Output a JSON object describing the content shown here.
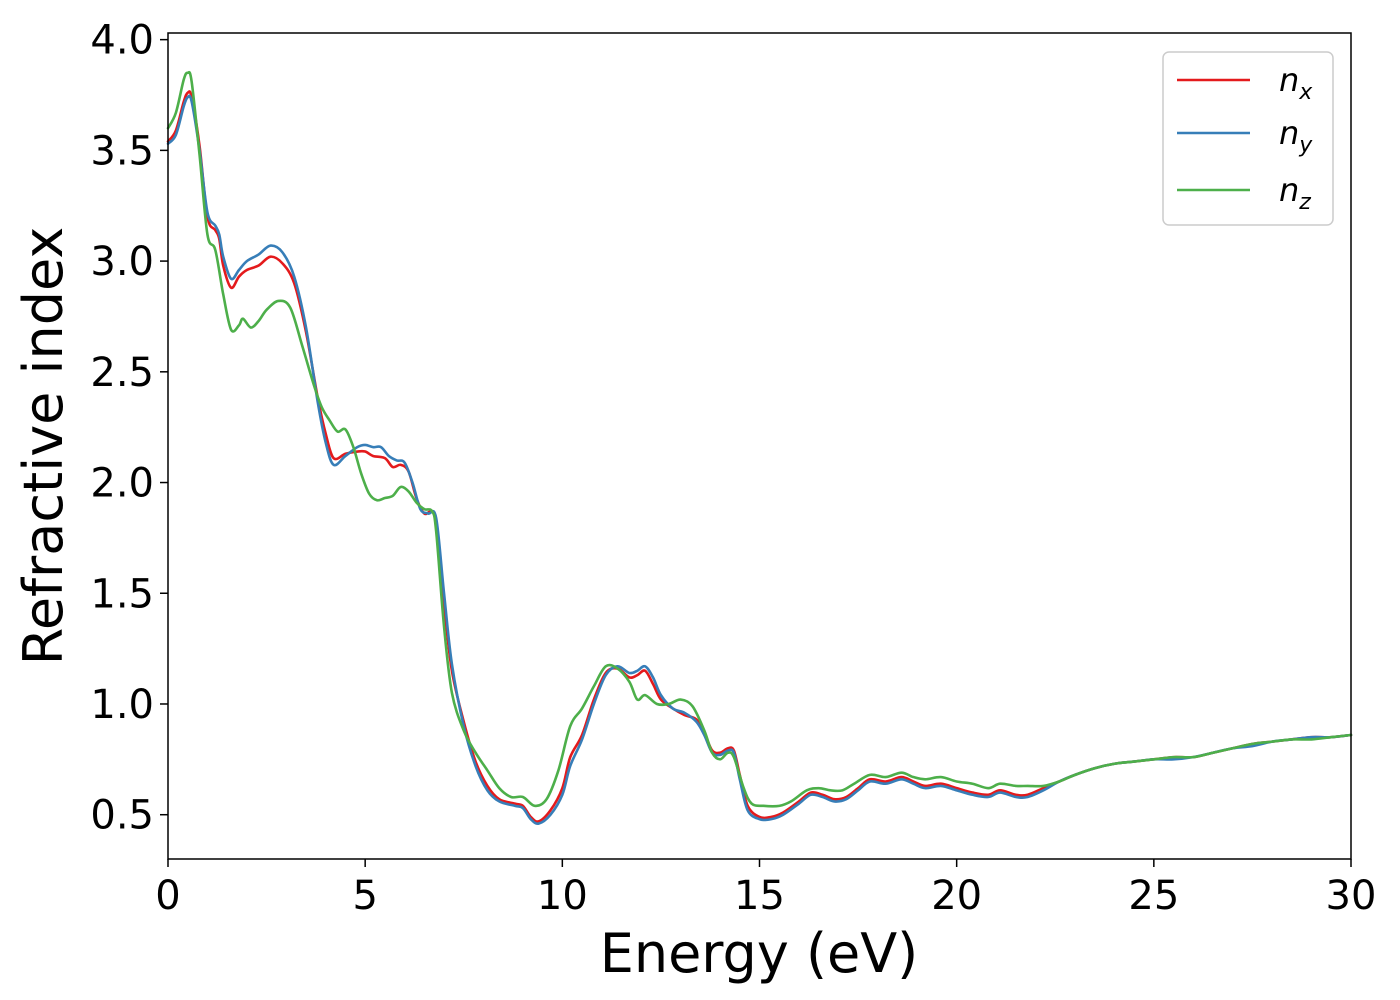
{
  "chart_data": {
    "type": "line",
    "xlabel": "Energy (eV)",
    "ylabel": "Refractive index",
    "xlim": [
      0,
      30
    ],
    "ylim": [
      0.3,
      4.03
    ],
    "xticks": [
      0,
      5,
      10,
      15,
      20,
      25,
      30
    ],
    "xtick_labels": [
      "0",
      "5",
      "10",
      "15",
      "20",
      "25",
      "30"
    ],
    "yticks": [
      0.5,
      1.0,
      1.5,
      2.0,
      2.5,
      3.0,
      3.5,
      4.0
    ],
    "ytick_labels": [
      "0.5",
      "1.0",
      "1.5",
      "2.0",
      "2.5",
      "3.0",
      "3.5",
      "4.0"
    ],
    "grid": false,
    "legend_position": "top-right",
    "series": [
      {
        "name": "n",
        "subscript": "x",
        "color": "#e41a1c",
        "points": [
          [
            0,
            3.54
          ],
          [
            0.2,
            3.59
          ],
          [
            0.4,
            3.72
          ],
          [
            0.5,
            3.76
          ],
          [
            0.6,
            3.74
          ],
          [
            0.8,
            3.52
          ],
          [
            1.0,
            3.2
          ],
          [
            1.2,
            3.14
          ],
          [
            1.3,
            3.1
          ],
          [
            1.4,
            2.98
          ],
          [
            1.6,
            2.88
          ],
          [
            1.8,
            2.93
          ],
          [
            2.0,
            2.96
          ],
          [
            2.3,
            2.98
          ],
          [
            2.6,
            3.02
          ],
          [
            2.9,
            2.99
          ],
          [
            3.2,
            2.9
          ],
          [
            3.5,
            2.68
          ],
          [
            3.8,
            2.38
          ],
          [
            4.0,
            2.22
          ],
          [
            4.2,
            2.11
          ],
          [
            4.5,
            2.13
          ],
          [
            4.8,
            2.14
          ],
          [
            5.0,
            2.14
          ],
          [
            5.2,
            2.12
          ],
          [
            5.5,
            2.11
          ],
          [
            5.7,
            2.07
          ],
          [
            5.9,
            2.08
          ],
          [
            6.1,
            2.05
          ],
          [
            6.3,
            1.93
          ],
          [
            6.5,
            1.86
          ],
          [
            6.7,
            1.87
          ],
          [
            6.8,
            1.8
          ],
          [
            7.0,
            1.45
          ],
          [
            7.2,
            1.15
          ],
          [
            7.5,
            0.92
          ],
          [
            7.8,
            0.74
          ],
          [
            8.1,
            0.63
          ],
          [
            8.4,
            0.57
          ],
          [
            8.8,
            0.55
          ],
          [
            9.0,
            0.54
          ],
          [
            9.2,
            0.49
          ],
          [
            9.4,
            0.47
          ],
          [
            9.7,
            0.52
          ],
          [
            10.0,
            0.62
          ],
          [
            10.2,
            0.76
          ],
          [
            10.5,
            0.86
          ],
          [
            10.8,
            1.02
          ],
          [
            11.1,
            1.14
          ],
          [
            11.4,
            1.16
          ],
          [
            11.7,
            1.12
          ],
          [
            11.9,
            1.13
          ],
          [
            12.1,
            1.15
          ],
          [
            12.3,
            1.09
          ],
          [
            12.5,
            1.02
          ],
          [
            12.8,
            0.98
          ],
          [
            13.1,
            0.95
          ],
          [
            13.4,
            0.93
          ],
          [
            13.6,
            0.87
          ],
          [
            13.8,
            0.79
          ],
          [
            14.0,
            0.78
          ],
          [
            14.2,
            0.8
          ],
          [
            14.35,
            0.79
          ],
          [
            14.5,
            0.68
          ],
          [
            14.7,
            0.54
          ],
          [
            15.0,
            0.49
          ],
          [
            15.3,
            0.49
          ],
          [
            15.6,
            0.51
          ],
          [
            16.0,
            0.56
          ],
          [
            16.3,
            0.6
          ],
          [
            16.6,
            0.59
          ],
          [
            16.9,
            0.57
          ],
          [
            17.2,
            0.58
          ],
          [
            17.5,
            0.62
          ],
          [
            17.8,
            0.66
          ],
          [
            18.2,
            0.65
          ],
          [
            18.6,
            0.67
          ],
          [
            18.9,
            0.65
          ],
          [
            19.2,
            0.63
          ],
          [
            19.6,
            0.64
          ],
          [
            20.0,
            0.62
          ],
          [
            20.4,
            0.6
          ],
          [
            20.8,
            0.59
          ],
          [
            21.1,
            0.61
          ],
          [
            21.5,
            0.59
          ],
          [
            21.8,
            0.59
          ],
          [
            22.2,
            0.62
          ],
          [
            22.6,
            0.65
          ],
          [
            23.0,
            0.68
          ],
          [
            23.5,
            0.71
          ],
          [
            24.0,
            0.73
          ],
          [
            24.5,
            0.74
          ],
          [
            25.0,
            0.75
          ],
          [
            25.5,
            0.76
          ],
          [
            26.0,
            0.76
          ],
          [
            26.5,
            0.78
          ],
          [
            27.0,
            0.8
          ],
          [
            27.5,
            0.82
          ],
          [
            28.0,
            0.83
          ],
          [
            28.5,
            0.84
          ],
          [
            29.0,
            0.85
          ],
          [
            29.5,
            0.85
          ],
          [
            30.0,
            0.86
          ]
        ]
      },
      {
        "name": "n",
        "subscript": "y",
        "color": "#377eb8",
        "points": [
          [
            0,
            3.53
          ],
          [
            0.2,
            3.57
          ],
          [
            0.4,
            3.7
          ],
          [
            0.5,
            3.74
          ],
          [
            0.6,
            3.72
          ],
          [
            0.8,
            3.5
          ],
          [
            1.0,
            3.22
          ],
          [
            1.2,
            3.16
          ],
          [
            1.3,
            3.12
          ],
          [
            1.4,
            3.02
          ],
          [
            1.6,
            2.92
          ],
          [
            1.8,
            2.96
          ],
          [
            2.0,
            3.0
          ],
          [
            2.3,
            3.03
          ],
          [
            2.6,
            3.07
          ],
          [
            2.9,
            3.04
          ],
          [
            3.2,
            2.93
          ],
          [
            3.5,
            2.7
          ],
          [
            3.8,
            2.36
          ],
          [
            4.0,
            2.18
          ],
          [
            4.2,
            2.08
          ],
          [
            4.5,
            2.12
          ],
          [
            4.8,
            2.16
          ],
          [
            5.0,
            2.17
          ],
          [
            5.2,
            2.16
          ],
          [
            5.4,
            2.16
          ],
          [
            5.6,
            2.12
          ],
          [
            5.8,
            2.1
          ],
          [
            6.0,
            2.09
          ],
          [
            6.2,
            2.0
          ],
          [
            6.4,
            1.88
          ],
          [
            6.6,
            1.86
          ],
          [
            6.8,
            1.84
          ],
          [
            7.0,
            1.5
          ],
          [
            7.2,
            1.18
          ],
          [
            7.5,
            0.9
          ],
          [
            7.8,
            0.72
          ],
          [
            8.1,
            0.61
          ],
          [
            8.4,
            0.56
          ],
          [
            8.8,
            0.54
          ],
          [
            9.0,
            0.53
          ],
          [
            9.2,
            0.48
          ],
          [
            9.4,
            0.46
          ],
          [
            9.7,
            0.5
          ],
          [
            10.0,
            0.59
          ],
          [
            10.2,
            0.72
          ],
          [
            10.5,
            0.84
          ],
          [
            10.8,
            1.0
          ],
          [
            11.1,
            1.13
          ],
          [
            11.4,
            1.17
          ],
          [
            11.7,
            1.14
          ],
          [
            11.9,
            1.15
          ],
          [
            12.1,
            1.17
          ],
          [
            12.3,
            1.12
          ],
          [
            12.5,
            1.04
          ],
          [
            12.8,
            0.98
          ],
          [
            13.1,
            0.96
          ],
          [
            13.4,
            0.92
          ],
          [
            13.6,
            0.86
          ],
          [
            13.8,
            0.78
          ],
          [
            14.0,
            0.77
          ],
          [
            14.2,
            0.79
          ],
          [
            14.35,
            0.78
          ],
          [
            14.5,
            0.66
          ],
          [
            14.7,
            0.52
          ],
          [
            15.0,
            0.48
          ],
          [
            15.3,
            0.48
          ],
          [
            15.6,
            0.5
          ],
          [
            16.0,
            0.55
          ],
          [
            16.3,
            0.59
          ],
          [
            16.6,
            0.58
          ],
          [
            16.9,
            0.56
          ],
          [
            17.2,
            0.57
          ],
          [
            17.5,
            0.61
          ],
          [
            17.8,
            0.65
          ],
          [
            18.2,
            0.64
          ],
          [
            18.6,
            0.66
          ],
          [
            18.9,
            0.64
          ],
          [
            19.2,
            0.62
          ],
          [
            19.6,
            0.63
          ],
          [
            20.0,
            0.61
          ],
          [
            20.4,
            0.59
          ],
          [
            20.8,
            0.58
          ],
          [
            21.1,
            0.6
          ],
          [
            21.5,
            0.58
          ],
          [
            21.8,
            0.58
          ],
          [
            22.2,
            0.61
          ],
          [
            22.6,
            0.65
          ],
          [
            23.0,
            0.68
          ],
          [
            23.5,
            0.71
          ],
          [
            24.0,
            0.73
          ],
          [
            24.5,
            0.74
          ],
          [
            25.0,
            0.75
          ],
          [
            25.5,
            0.75
          ],
          [
            26.0,
            0.76
          ],
          [
            26.5,
            0.78
          ],
          [
            27.0,
            0.8
          ],
          [
            27.5,
            0.81
          ],
          [
            28.0,
            0.83
          ],
          [
            28.5,
            0.84
          ],
          [
            29.0,
            0.85
          ],
          [
            29.5,
            0.85
          ],
          [
            30.0,
            0.86
          ]
        ]
      },
      {
        "name": "n",
        "subscript": "z",
        "color": "#4daf4a",
        "points": [
          [
            0,
            3.6
          ],
          [
            0.2,
            3.67
          ],
          [
            0.4,
            3.82
          ],
          [
            0.5,
            3.85
          ],
          [
            0.6,
            3.81
          ],
          [
            0.8,
            3.48
          ],
          [
            1.0,
            3.12
          ],
          [
            1.2,
            3.05
          ],
          [
            1.4,
            2.85
          ],
          [
            1.6,
            2.69
          ],
          [
            1.8,
            2.71
          ],
          [
            1.9,
            2.74
          ],
          [
            2.1,
            2.7
          ],
          [
            2.3,
            2.73
          ],
          [
            2.5,
            2.78
          ],
          [
            2.8,
            2.82
          ],
          [
            3.1,
            2.79
          ],
          [
            3.4,
            2.62
          ],
          [
            3.7,
            2.44
          ],
          [
            3.9,
            2.34
          ],
          [
            4.1,
            2.28
          ],
          [
            4.3,
            2.23
          ],
          [
            4.5,
            2.24
          ],
          [
            4.7,
            2.16
          ],
          [
            4.9,
            2.04
          ],
          [
            5.1,
            1.95
          ],
          [
            5.3,
            1.92
          ],
          [
            5.5,
            1.93
          ],
          [
            5.7,
            1.94
          ],
          [
            5.9,
            1.98
          ],
          [
            6.1,
            1.96
          ],
          [
            6.3,
            1.91
          ],
          [
            6.5,
            1.88
          ],
          [
            6.7,
            1.87
          ],
          [
            6.8,
            1.78
          ],
          [
            7.0,
            1.35
          ],
          [
            7.2,
            1.05
          ],
          [
            7.5,
            0.88
          ],
          [
            7.8,
            0.78
          ],
          [
            8.1,
            0.7
          ],
          [
            8.4,
            0.62
          ],
          [
            8.7,
            0.58
          ],
          [
            9.0,
            0.58
          ],
          [
            9.3,
            0.54
          ],
          [
            9.6,
            0.57
          ],
          [
            9.9,
            0.7
          ],
          [
            10.2,
            0.9
          ],
          [
            10.5,
            0.98
          ],
          [
            10.8,
            1.08
          ],
          [
            11.1,
            1.17
          ],
          [
            11.4,
            1.16
          ],
          [
            11.7,
            1.1
          ],
          [
            11.9,
            1.02
          ],
          [
            12.1,
            1.04
          ],
          [
            12.4,
            1.0
          ],
          [
            12.7,
            1.0
          ],
          [
            13.0,
            1.02
          ],
          [
            13.3,
            0.99
          ],
          [
            13.6,
            0.88
          ],
          [
            13.8,
            0.78
          ],
          [
            14.0,
            0.75
          ],
          [
            14.2,
            0.78
          ],
          [
            14.35,
            0.76
          ],
          [
            14.6,
            0.62
          ],
          [
            14.8,
            0.55
          ],
          [
            15.1,
            0.54
          ],
          [
            15.5,
            0.54
          ],
          [
            15.8,
            0.56
          ],
          [
            16.2,
            0.61
          ],
          [
            16.5,
            0.62
          ],
          [
            16.8,
            0.61
          ],
          [
            17.1,
            0.61
          ],
          [
            17.4,
            0.64
          ],
          [
            17.8,
            0.68
          ],
          [
            18.2,
            0.67
          ],
          [
            18.6,
            0.69
          ],
          [
            18.9,
            0.67
          ],
          [
            19.2,
            0.66
          ],
          [
            19.6,
            0.67
          ],
          [
            20.0,
            0.65
          ],
          [
            20.4,
            0.64
          ],
          [
            20.8,
            0.62
          ],
          [
            21.1,
            0.64
          ],
          [
            21.5,
            0.63
          ],
          [
            21.8,
            0.63
          ],
          [
            22.2,
            0.63
          ],
          [
            22.6,
            0.65
          ],
          [
            23.0,
            0.68
          ],
          [
            23.5,
            0.71
          ],
          [
            24.0,
            0.73
          ],
          [
            24.5,
            0.74
          ],
          [
            25.0,
            0.75
          ],
          [
            25.5,
            0.76
          ],
          [
            26.0,
            0.76
          ],
          [
            26.5,
            0.78
          ],
          [
            27.0,
            0.8
          ],
          [
            27.5,
            0.82
          ],
          [
            28.0,
            0.83
          ],
          [
            28.5,
            0.84
          ],
          [
            29.0,
            0.84
          ],
          [
            29.5,
            0.85
          ],
          [
            30.0,
            0.86
          ]
        ]
      }
    ]
  }
}
